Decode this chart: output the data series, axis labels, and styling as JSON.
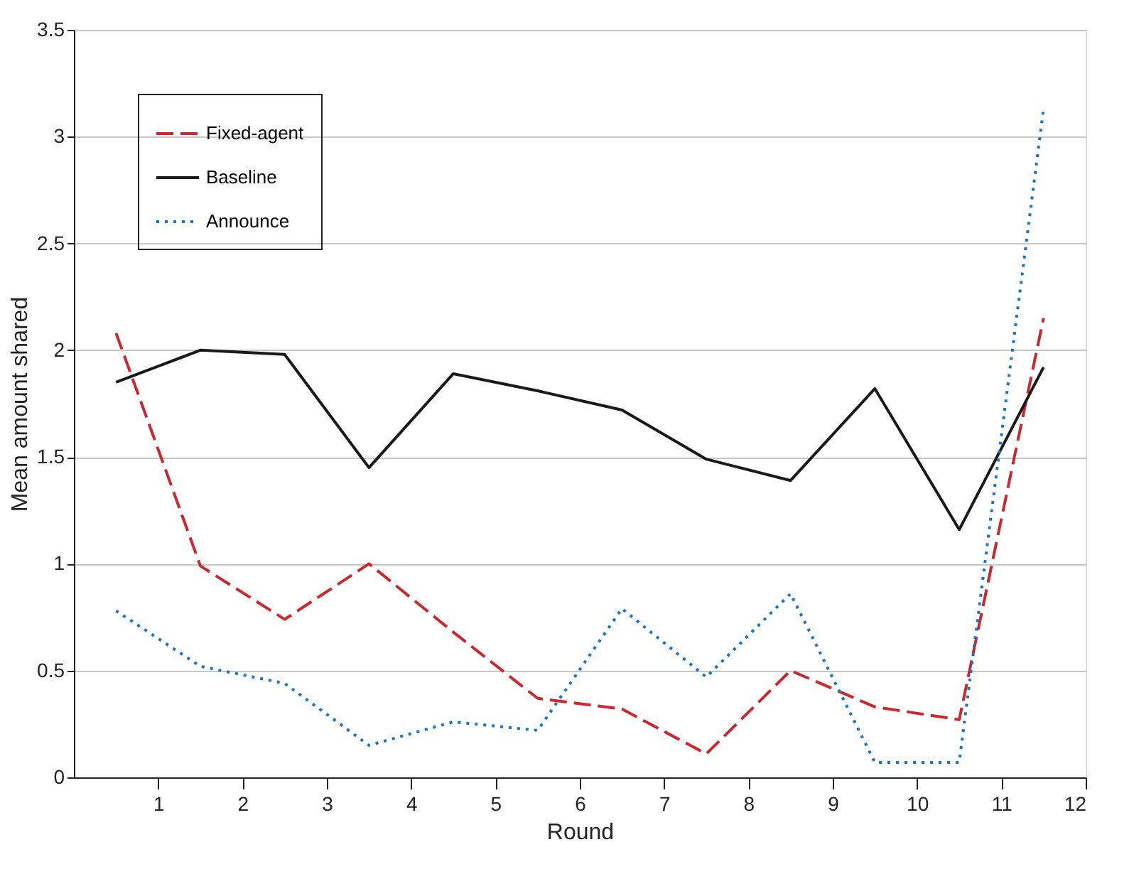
{
  "chart_data": {
    "type": "line",
    "xlabel": "Round",
    "ylabel": "Mean amount shared",
    "x": [
      0.5,
      1.5,
      2.5,
      3.5,
      4.5,
      5.5,
      6.5,
      7.5,
      8.5,
      9.5,
      10.5,
      11.5
    ],
    "xlim": [
      0,
      12
    ],
    "xticks": [
      1,
      2,
      3,
      4,
      5,
      6,
      7,
      8,
      9,
      10,
      11,
      12
    ],
    "ylim": [
      0,
      3.5
    ],
    "yticks": [
      0,
      0.5,
      1,
      1.5,
      2,
      2.5,
      3,
      3.5
    ],
    "grid": "y",
    "legend": "top left",
    "marker": "none",
    "series": [
      {
        "name": "Fixed-agent",
        "color": "#c8282e",
        "line_style": "dashed",
        "values": [
          2.08,
          0.99,
          0.74,
          1.0,
          0.68,
          0.37,
          0.32,
          0.11,
          0.5,
          0.33,
          0.27,
          2.15
        ]
      },
      {
        "name": "Baseline",
        "color": "#1a1a1a",
        "line_style": "solid",
        "values": [
          1.85,
          2.0,
          1.98,
          1.45,
          1.89,
          1.81,
          1.72,
          1.49,
          1.39,
          1.82,
          1.16,
          1.92
        ]
      },
      {
        "name": "Announce",
        "color": "#1874c4",
        "line_style": "dotted",
        "values": [
          0.78,
          0.52,
          0.44,
          0.15,
          0.26,
          0.22,
          0.79,
          0.47,
          0.86,
          0.07,
          0.07,
          3.13
        ]
      }
    ]
  }
}
